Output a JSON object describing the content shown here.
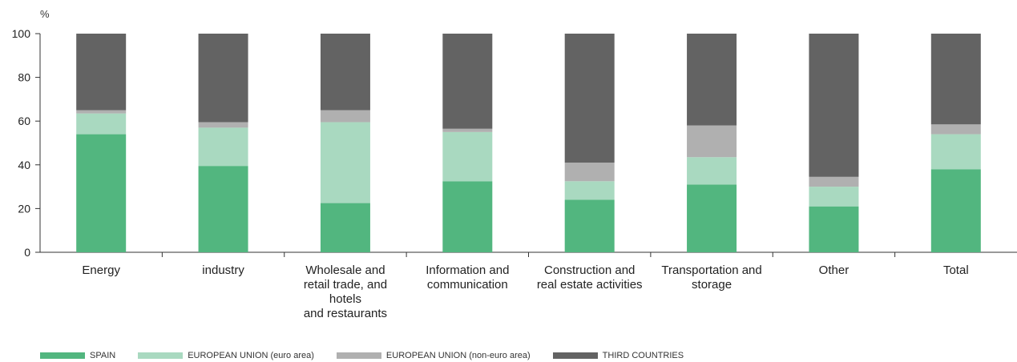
{
  "chart_data": {
    "type": "bar",
    "stacked": true,
    "unit_label": "%",
    "ylim": [
      0,
      100
    ],
    "yticks": [
      0,
      20,
      40,
      60,
      80,
      100
    ],
    "grid": false,
    "legend_position": "bottom",
    "categories": [
      [
        "Energy"
      ],
      [
        "industry"
      ],
      [
        "Wholesale and",
        "retail trade, and",
        "hotels",
        "and restaurants"
      ],
      [
        "Information and",
        "communication"
      ],
      [
        "Construction and",
        "real estate activities"
      ],
      [
        "Transportation and",
        "storage"
      ],
      [
        "Other"
      ],
      [
        "Total"
      ]
    ],
    "series": [
      {
        "name": "SPAIN",
        "color": "#52b67f",
        "values": [
          54,
          39.5,
          22.5,
          32.5,
          24,
          31,
          21,
          38
        ]
      },
      {
        "name": "EUROPEAN UNION (euro area)",
        "color": "#a9d9c0",
        "values": [
          9.5,
          17.5,
          37,
          22.5,
          8.5,
          12.5,
          9,
          16
        ]
      },
      {
        "name": "EUROPEAN UNION (non-euro area)",
        "color": "#b0b0b0",
        "values": [
          1.5,
          2.5,
          5.5,
          1.5,
          8.5,
          14.5,
          4.5,
          4.5
        ]
      },
      {
        "name": "THIRD COUNTRIES",
        "color": "#636363",
        "values": [
          35,
          40.5,
          35,
          43.5,
          59,
          42,
          65.5,
          41.5
        ]
      }
    ]
  }
}
